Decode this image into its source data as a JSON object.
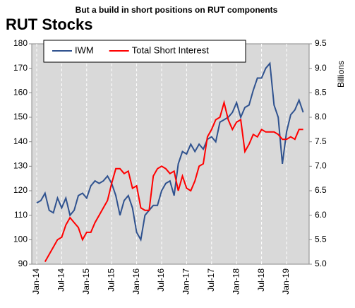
{
  "chart_data": {
    "type": "line",
    "title": "But a build in short positions on RUT components",
    "subtitle": "RUT Stocks",
    "y2_label": "Billions",
    "categories": [
      "Jan-14",
      null,
      null,
      null,
      null,
      null,
      "Jul-14",
      null,
      null,
      null,
      null,
      null,
      "Jan-15",
      null,
      null,
      null,
      null,
      null,
      "Jul-15",
      null,
      null,
      null,
      null,
      null,
      "Jan-16",
      null,
      null,
      null,
      null,
      null,
      "Jul-16",
      null,
      null,
      null,
      null,
      null,
      "Jan-17",
      null,
      null,
      null,
      null,
      null,
      "Jul-17",
      null,
      null,
      null,
      null,
      null,
      "Jan-18",
      null,
      null,
      null,
      null,
      null,
      "Jul-18",
      null,
      null,
      null,
      null,
      null,
      "Jan-19",
      null,
      null,
      null,
      null
    ],
    "series": [
      {
        "name": "IWM",
        "color": "#2f528f",
        "values": [
          115,
          116,
          119,
          112,
          111,
          117,
          113,
          117,
          110,
          112,
          118,
          119,
          117,
          122,
          124,
          123,
          124,
          126,
          123,
          118,
          110,
          116,
          118,
          113,
          103,
          100,
          110,
          112,
          114,
          114,
          120,
          123,
          124,
          118,
          131,
          136,
          135,
          139,
          136,
          139,
          137,
          141,
          142,
          140,
          148,
          149,
          150,
          152,
          156,
          150,
          154,
          155,
          161,
          166,
          166,
          170,
          172,
          155,
          150,
          131,
          144,
          151,
          153,
          157,
          152
        ]
      },
      {
        "name": "Total Short Interest",
        "color": "#ff0000",
        "axis": "y2",
        "values": [
          null,
          null,
          5.05,
          5.2,
          5.35,
          5.5,
          5.55,
          5.8,
          5.95,
          5.85,
          5.75,
          5.5,
          5.65,
          5.65,
          5.85,
          6.0,
          6.15,
          6.3,
          6.65,
          6.95,
          6.95,
          6.85,
          6.9,
          6.55,
          6.6,
          6.15,
          6.1,
          6.1,
          6.8,
          6.95,
          7.0,
          6.95,
          6.85,
          6.9,
          6.5,
          6.8,
          6.55,
          6.5,
          6.7,
          7.0,
          7.05,
          7.6,
          7.75,
          7.95,
          8.0,
          8.3,
          7.95,
          7.75,
          7.9,
          7.95,
          7.3,
          7.45,
          7.65,
          7.6,
          7.75,
          7.7,
          7.7,
          7.7,
          7.65,
          7.55,
          7.55,
          7.6,
          7.55,
          7.75,
          7.75
        ]
      }
    ],
    "ylim": [
      90,
      180
    ],
    "yticks": [
      90,
      100,
      110,
      120,
      130,
      140,
      150,
      160,
      170,
      180
    ],
    "y2lim": [
      5,
      9.5
    ],
    "y2ticks": [
      {
        "value": 5,
        "label": "5.0"
      },
      5.5,
      {
        "value": 6,
        "label": "6.0"
      },
      6.5,
      {
        "value": 7,
        "label": "7.0"
      },
      7.5,
      {
        "value": 8,
        "label": "8.0"
      },
      8.5,
      {
        "value": 9,
        "label": "9.0"
      },
      9.5
    ],
    "grid": "x",
    "background": "#d9d9d9",
    "legend": "top-left"
  }
}
